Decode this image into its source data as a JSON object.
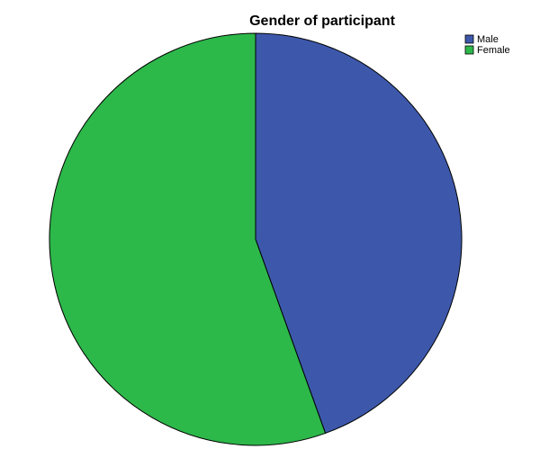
{
  "chart_data": {
    "type": "pie",
    "title": "Gender of participant",
    "legend_position": "top-right",
    "categories": [
      "Male",
      "Female"
    ],
    "values": [
      44.5,
      55.5
    ],
    "colors": [
      "#3d58ab",
      "#2db84a"
    ]
  }
}
